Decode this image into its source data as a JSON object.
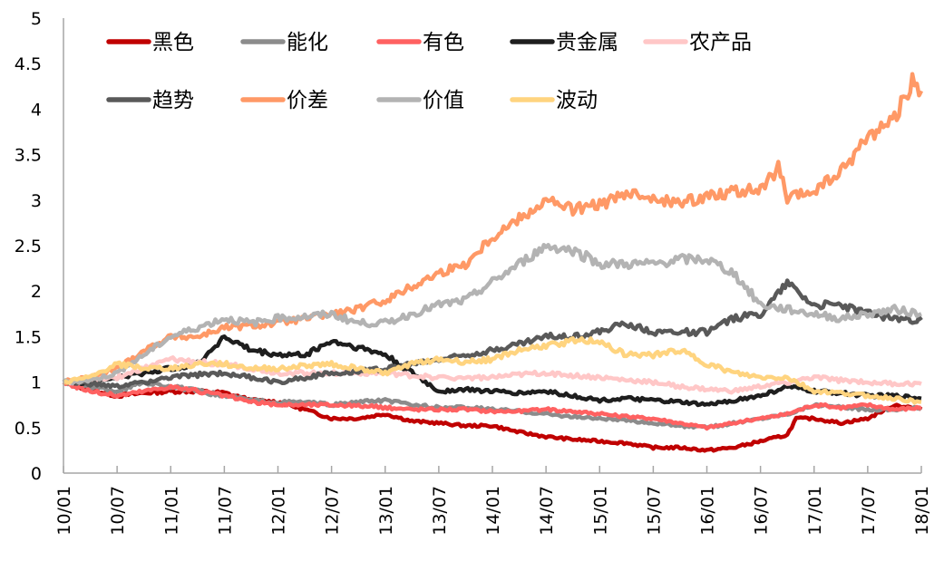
{
  "chart_data": {
    "type": "line",
    "title": "",
    "xlabel": "",
    "ylabel": "",
    "x_unit": "months since 10/01",
    "xlim": [
      0,
      96
    ],
    "ylim": [
      0,
      5
    ],
    "yticks": [
      "0",
      "0.5",
      "1",
      "1.5",
      "2",
      "2.5",
      "3",
      "3.5",
      "4",
      "4.5",
      "5"
    ],
    "ytick_values": [
      0,
      0.5,
      1,
      1.5,
      2,
      2.5,
      3,
      3.5,
      4,
      4.5,
      5
    ],
    "xticks": [
      "10/01",
      "10/07",
      "11/01",
      "11/07",
      "12/01",
      "12/07",
      "13/01",
      "13/07",
      "14/01",
      "14/07",
      "15/01",
      "15/07",
      "16/01",
      "16/07",
      "17/01",
      "17/07",
      "18/01"
    ],
    "grid": false,
    "legend": "top-left",
    "series": [
      {
        "name": "黑色",
        "color": "#C00000",
        "points": [
          [
            0,
            1.0
          ],
          [
            3,
            0.92
          ],
          [
            6,
            0.85
          ],
          [
            9,
            0.88
          ],
          [
            12,
            0.9
          ],
          [
            15,
            0.9
          ],
          [
            18,
            0.88
          ],
          [
            21,
            0.8
          ],
          [
            24,
            0.78
          ],
          [
            27,
            0.7
          ],
          [
            30,
            0.6
          ],
          [
            33,
            0.6
          ],
          [
            36,
            0.65
          ],
          [
            39,
            0.57
          ],
          [
            42,
            0.55
          ],
          [
            45,
            0.52
          ],
          [
            48,
            0.52
          ],
          [
            51,
            0.45
          ],
          [
            54,
            0.4
          ],
          [
            57,
            0.37
          ],
          [
            60,
            0.35
          ],
          [
            63,
            0.33
          ],
          [
            66,
            0.28
          ],
          [
            69,
            0.28
          ],
          [
            72,
            0.25
          ],
          [
            75,
            0.28
          ],
          [
            78,
            0.35
          ],
          [
            81,
            0.42
          ],
          [
            82,
            0.6
          ],
          [
            84,
            0.6
          ],
          [
            87,
            0.55
          ],
          [
            90,
            0.6
          ],
          [
            93,
            0.75
          ],
          [
            96,
            0.7
          ]
        ]
      },
      {
        "name": "能化",
        "color": "#8C8C8C",
        "points": [
          [
            0,
            1.0
          ],
          [
            3,
            0.95
          ],
          [
            6,
            0.9
          ],
          [
            9,
            1.0
          ],
          [
            12,
            0.95
          ],
          [
            15,
            0.9
          ],
          [
            18,
            0.85
          ],
          [
            21,
            0.8
          ],
          [
            24,
            0.78
          ],
          [
            27,
            0.78
          ],
          [
            30,
            0.75
          ],
          [
            33,
            0.78
          ],
          [
            36,
            0.8
          ],
          [
            39,
            0.75
          ],
          [
            42,
            0.72
          ],
          [
            45,
            0.72
          ],
          [
            48,
            0.7
          ],
          [
            51,
            0.68
          ],
          [
            54,
            0.65
          ],
          [
            57,
            0.62
          ],
          [
            60,
            0.6
          ],
          [
            63,
            0.58
          ],
          [
            66,
            0.55
          ],
          [
            69,
            0.52
          ],
          [
            72,
            0.5
          ],
          [
            75,
            0.55
          ],
          [
            78,
            0.6
          ],
          [
            81,
            0.65
          ],
          [
            84,
            0.75
          ],
          [
            87,
            0.72
          ],
          [
            90,
            0.7
          ],
          [
            93,
            0.7
          ],
          [
            96,
            0.72
          ]
        ]
      },
      {
        "name": "有色",
        "color": "#FF6161",
        "points": [
          [
            0,
            1.0
          ],
          [
            3,
            0.9
          ],
          [
            6,
            0.85
          ],
          [
            9,
            0.9
          ],
          [
            12,
            0.95
          ],
          [
            15,
            0.9
          ],
          [
            18,
            0.85
          ],
          [
            21,
            0.78
          ],
          [
            24,
            0.75
          ],
          [
            27,
            0.75
          ],
          [
            30,
            0.75
          ],
          [
            33,
            0.74
          ],
          [
            36,
            0.72
          ],
          [
            39,
            0.7
          ],
          [
            42,
            0.7
          ],
          [
            45,
            0.7
          ],
          [
            48,
            0.68
          ],
          [
            51,
            0.68
          ],
          [
            54,
            0.7
          ],
          [
            57,
            0.68
          ],
          [
            60,
            0.65
          ],
          [
            63,
            0.62
          ],
          [
            66,
            0.6
          ],
          [
            69,
            0.55
          ],
          [
            72,
            0.5
          ],
          [
            75,
            0.55
          ],
          [
            78,
            0.6
          ],
          [
            81,
            0.65
          ],
          [
            84,
            0.75
          ],
          [
            87,
            0.72
          ],
          [
            90,
            0.75
          ],
          [
            93,
            0.7
          ],
          [
            96,
            0.72
          ]
        ]
      },
      {
        "name": "贵金属",
        "color": "#1E1E1E",
        "points": [
          [
            0,
            1.0
          ],
          [
            3,
            1.0
          ],
          [
            6,
            1.05
          ],
          [
            9,
            1.1
          ],
          [
            12,
            1.15
          ],
          [
            15,
            1.2
          ],
          [
            18,
            1.5
          ],
          [
            21,
            1.35
          ],
          [
            24,
            1.3
          ],
          [
            27,
            1.3
          ],
          [
            30,
            1.45
          ],
          [
            33,
            1.38
          ],
          [
            36,
            1.3
          ],
          [
            39,
            1.1
          ],
          [
            42,
            0.9
          ],
          [
            45,
            0.92
          ],
          [
            48,
            0.9
          ],
          [
            51,
            0.88
          ],
          [
            54,
            0.9
          ],
          [
            57,
            0.85
          ],
          [
            60,
            0.8
          ],
          [
            63,
            0.82
          ],
          [
            66,
            0.8
          ],
          [
            69,
            0.78
          ],
          [
            72,
            0.75
          ],
          [
            75,
            0.8
          ],
          [
            78,
            0.85
          ],
          [
            81,
            0.95
          ],
          [
            84,
            0.9
          ],
          [
            87,
            0.88
          ],
          [
            90,
            0.85
          ],
          [
            93,
            0.85
          ],
          [
            96,
            0.82
          ]
        ]
      },
      {
        "name": "农产品",
        "color": "#FFC7C7",
        "points": [
          [
            0,
            1.0
          ],
          [
            3,
            1.02
          ],
          [
            6,
            1.05
          ],
          [
            9,
            1.15
          ],
          [
            12,
            1.25
          ],
          [
            15,
            1.22
          ],
          [
            18,
            1.2
          ],
          [
            21,
            1.15
          ],
          [
            24,
            1.1
          ],
          [
            27,
            1.1
          ],
          [
            30,
            1.1
          ],
          [
            33,
            1.1
          ],
          [
            36,
            1.1
          ],
          [
            39,
            1.07
          ],
          [
            42,
            1.05
          ],
          [
            45,
            1.05
          ],
          [
            48,
            1.05
          ],
          [
            51,
            1.08
          ],
          [
            54,
            1.1
          ],
          [
            57,
            1.07
          ],
          [
            60,
            1.05
          ],
          [
            63,
            1.02
          ],
          [
            66,
            1.0
          ],
          [
            69,
            0.95
          ],
          [
            72,
            0.92
          ],
          [
            75,
            0.9
          ],
          [
            78,
            0.95
          ],
          [
            81,
            1.0
          ],
          [
            84,
            1.05
          ],
          [
            87,
            1.02
          ],
          [
            90,
            1.0
          ],
          [
            93,
            0.98
          ],
          [
            96,
            0.98
          ]
        ]
      },
      {
        "name": "趋势",
        "color": "#595959",
        "points": [
          [
            0,
            1.0
          ],
          [
            3,
            0.98
          ],
          [
            6,
            0.95
          ],
          [
            9,
            1.0
          ],
          [
            12,
            1.05
          ],
          [
            15,
            1.08
          ],
          [
            18,
            1.1
          ],
          [
            21,
            1.05
          ],
          [
            24,
            1.0
          ],
          [
            27,
            1.05
          ],
          [
            30,
            1.1
          ],
          [
            33,
            1.12
          ],
          [
            36,
            1.15
          ],
          [
            39,
            1.2
          ],
          [
            42,
            1.25
          ],
          [
            45,
            1.3
          ],
          [
            48,
            1.35
          ],
          [
            51,
            1.42
          ],
          [
            54,
            1.5
          ],
          [
            57,
            1.5
          ],
          [
            60,
            1.55
          ],
          [
            63,
            1.65
          ],
          [
            66,
            1.55
          ],
          [
            69,
            1.55
          ],
          [
            72,
            1.55
          ],
          [
            75,
            1.7
          ],
          [
            78,
            1.75
          ],
          [
            81,
            2.1
          ],
          [
            84,
            1.85
          ],
          [
            87,
            1.85
          ],
          [
            90,
            1.75
          ],
          [
            93,
            1.7
          ],
          [
            96,
            1.68
          ]
        ]
      },
      {
        "name": "价差",
        "color": "#FF9966",
        "points": [
          [
            0,
            1.0
          ],
          [
            3,
            1.05
          ],
          [
            6,
            1.15
          ],
          [
            9,
            1.35
          ],
          [
            12,
            1.5
          ],
          [
            15,
            1.5
          ],
          [
            18,
            1.6
          ],
          [
            21,
            1.62
          ],
          [
            24,
            1.65
          ],
          [
            27,
            1.7
          ],
          [
            30,
            1.75
          ],
          [
            33,
            1.8
          ],
          [
            36,
            1.9
          ],
          [
            39,
            2.05
          ],
          [
            42,
            2.2
          ],
          [
            45,
            2.3
          ],
          [
            48,
            2.6
          ],
          [
            51,
            2.8
          ],
          [
            54,
            3.0
          ],
          [
            57,
            2.9
          ],
          [
            60,
            2.95
          ],
          [
            63,
            3.05
          ],
          [
            66,
            3.05
          ],
          [
            69,
            2.95
          ],
          [
            72,
            3.05
          ],
          [
            75,
            3.1
          ],
          [
            78,
            3.1
          ],
          [
            80,
            3.35
          ],
          [
            81,
            3.0
          ],
          [
            84,
            3.1
          ],
          [
            87,
            3.3
          ],
          [
            90,
            3.7
          ],
          [
            93,
            3.9
          ],
          [
            95,
            4.3
          ],
          [
            96,
            4.2
          ]
        ]
      },
      {
        "name": "价值",
        "color": "#B3B3B3",
        "points": [
          [
            0,
            1.0
          ],
          [
            3,
            1.02
          ],
          [
            6,
            1.1
          ],
          [
            9,
            1.3
          ],
          [
            12,
            1.5
          ],
          [
            15,
            1.6
          ],
          [
            18,
            1.7
          ],
          [
            21,
            1.65
          ],
          [
            24,
            1.7
          ],
          [
            27,
            1.72
          ],
          [
            30,
            1.75
          ],
          [
            33,
            1.65
          ],
          [
            36,
            1.65
          ],
          [
            39,
            1.75
          ],
          [
            42,
            1.85
          ],
          [
            45,
            1.9
          ],
          [
            48,
            2.1
          ],
          [
            51,
            2.3
          ],
          [
            54,
            2.5
          ],
          [
            57,
            2.45
          ],
          [
            60,
            2.3
          ],
          [
            63,
            2.3
          ],
          [
            66,
            2.3
          ],
          [
            69,
            2.35
          ],
          [
            72,
            2.35
          ],
          [
            75,
            2.2
          ],
          [
            78,
            1.85
          ],
          [
            81,
            1.8
          ],
          [
            84,
            1.75
          ],
          [
            87,
            1.7
          ],
          [
            90,
            1.75
          ],
          [
            93,
            1.8
          ],
          [
            96,
            1.75
          ]
        ]
      },
      {
        "name": "波动",
        "color": "#FFD47F",
        "points": [
          [
            0,
            1.0
          ],
          [
            3,
            1.05
          ],
          [
            6,
            1.2
          ],
          [
            9,
            1.15
          ],
          [
            12,
            1.15
          ],
          [
            15,
            1.2
          ],
          [
            18,
            1.2
          ],
          [
            21,
            1.15
          ],
          [
            24,
            1.15
          ],
          [
            27,
            1.18
          ],
          [
            30,
            1.2
          ],
          [
            33,
            1.15
          ],
          [
            36,
            1.1
          ],
          [
            39,
            1.2
          ],
          [
            42,
            1.25
          ],
          [
            45,
            1.22
          ],
          [
            48,
            1.25
          ],
          [
            51,
            1.35
          ],
          [
            54,
            1.4
          ],
          [
            57,
            1.45
          ],
          [
            60,
            1.45
          ],
          [
            63,
            1.3
          ],
          [
            66,
            1.3
          ],
          [
            69,
            1.35
          ],
          [
            72,
            1.2
          ],
          [
            75,
            1.1
          ],
          [
            78,
            1.05
          ],
          [
            81,
            1.05
          ],
          [
            84,
            0.9
          ],
          [
            87,
            0.88
          ],
          [
            90,
            0.85
          ],
          [
            93,
            0.82
          ],
          [
            96,
            0.78
          ]
        ]
      }
    ]
  }
}
